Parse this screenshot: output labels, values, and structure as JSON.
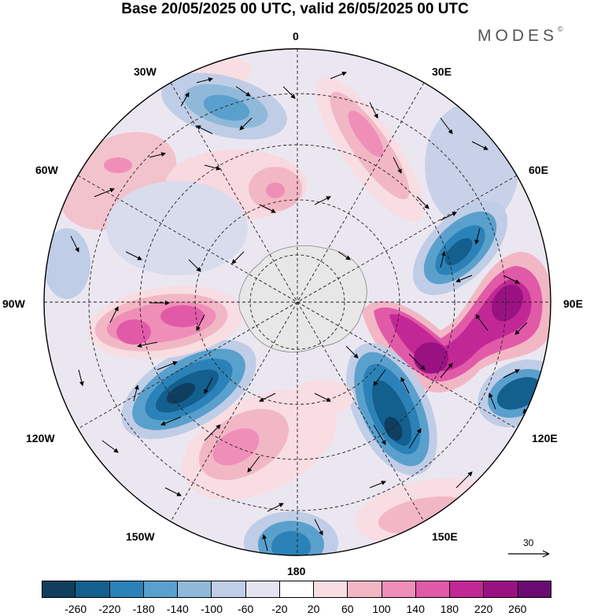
{
  "title": "Base 20/05/2025 00 UTC, valid 26/05/2025 00 UTC",
  "brand": "MODES",
  "brand_mark": "©",
  "longitude_labels": {
    "lon_0": "0",
    "lon_30e": "30E",
    "lon_60e": "60E",
    "lon_90e": "90E",
    "lon_120e": "120E",
    "lon_150e": "150E",
    "lon_180": "180",
    "lon_150w": "150W",
    "lon_120w": "120W",
    "lon_90w": "90W",
    "lon_60w": "60W",
    "lon_30w": "30W"
  },
  "reference_vector": {
    "label": "30"
  },
  "colorbar": {
    "labels": [
      "-260",
      "-220",
      "-180",
      "-140",
      "-100",
      "-60",
      "-20",
      "20",
      "60",
      "100",
      "140",
      "180",
      "220",
      "260"
    ],
    "colors": [
      "#0f3e5e",
      "#135f8e",
      "#2b82b8",
      "#5aa0cc",
      "#90b9d9",
      "#c0cde6",
      "#e4e4f1",
      "#ffffff",
      "#f8dde2",
      "#f2b7c5",
      "#ef8fb8",
      "#e15aa8",
      "#c22895",
      "#9a1282",
      "#6a0a72"
    ]
  },
  "map": {
    "projection": "south polar stereographic",
    "land_color": "#e7e7e7",
    "anomalies": [
      {
        "name": "atlantic-30w-low",
        "value": -140
      },
      {
        "name": "south-america-high",
        "value": 60
      },
      {
        "name": "weddell-high",
        "value": 100
      },
      {
        "name": "indian-30e-high",
        "value": 100
      },
      {
        "name": "indian-60e-low",
        "value": -220
      },
      {
        "name": "indian-90e-high",
        "value": 180
      },
      {
        "name": "east-antarctic-high",
        "value": 260
      },
      {
        "name": "australia-120e-low",
        "value": -260
      },
      {
        "name": "australia-100e-low",
        "value": -200
      },
      {
        "name": "pacific-180-low",
        "value": -180
      },
      {
        "name": "pacific-150w-high",
        "value": 100
      },
      {
        "name": "pacific-120w-low",
        "value": -260
      },
      {
        "name": "pacific-90w-high",
        "value": 140
      }
    ]
  }
}
